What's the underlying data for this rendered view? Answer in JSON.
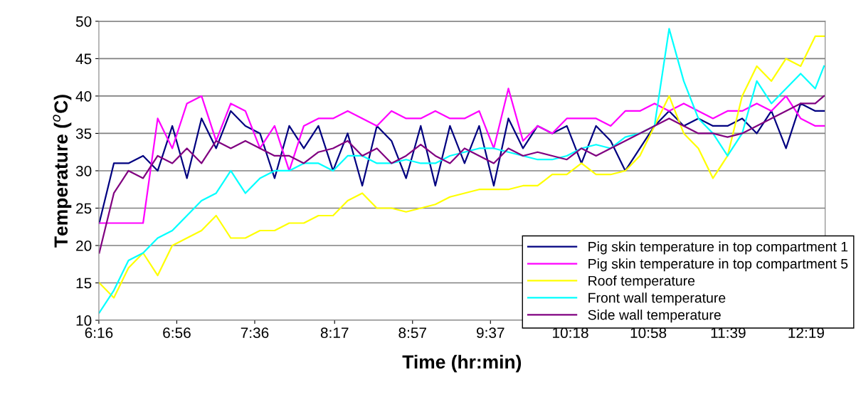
{
  "chart_data": {
    "type": "line",
    "xlabel": "Time (hr:min)",
    "ylabel": "Temperature ($^{o}$C)",
    "x": [
      6.27,
      6.395,
      6.52,
      6.645,
      6.77,
      6.895,
      7.02,
      7.145,
      7.27,
      7.395,
      7.52,
      7.645,
      7.77,
      7.895,
      8.02,
      8.145,
      8.27,
      8.395,
      8.52,
      8.645,
      8.77,
      8.895,
      9.02,
      9.145,
      9.27,
      9.395,
      9.52,
      9.645,
      9.77,
      9.895,
      10.02,
      10.145,
      10.27,
      10.395,
      10.52,
      10.645,
      10.77,
      10.895,
      11.02,
      11.145,
      11.27,
      11.395,
      11.52,
      11.645,
      11.77,
      11.895,
      12.02,
      12.145,
      12.27,
      12.395,
      12.47
    ],
    "series": [
      {
        "name": "Pig skin temperature in top compartment 1",
        "color": "#000080",
        "values": [
          23,
          31,
          31,
          32,
          30,
          36,
          29,
          37,
          33,
          38,
          36,
          35,
          29,
          36,
          33,
          36,
          30,
          35,
          28,
          36,
          34,
          29,
          36,
          28,
          36,
          31,
          36,
          28,
          37,
          33,
          36,
          35,
          36,
          31,
          36,
          34,
          30,
          33,
          36,
          38,
          36,
          37,
          36,
          36,
          37,
          35,
          38,
          33,
          39,
          38,
          38
        ]
      },
      {
        "name": "Pig skin temperature in top compartment 5",
        "color": "#ff00ff",
        "values": [
          23,
          23,
          23,
          23,
          37,
          33,
          39,
          40,
          34,
          39,
          38,
          33,
          36,
          30,
          36,
          37,
          37,
          38,
          37,
          36,
          38,
          37,
          37,
          38,
          37,
          37,
          38,
          33,
          41,
          34,
          36,
          35,
          37,
          37,
          37,
          36,
          38,
          38,
          39,
          38,
          39,
          38,
          37,
          38,
          38,
          39,
          38,
          40,
          37,
          36,
          36
        ]
      },
      {
        "name": "Roof temperature",
        "color": "#ffff00",
        "values": [
          15,
          13,
          17,
          19,
          16,
          20,
          21,
          22,
          24,
          21,
          21,
          22,
          22,
          23,
          23,
          24,
          24,
          26,
          27,
          25,
          25,
          24.5,
          25,
          25.5,
          26.5,
          27,
          27.5,
          27.5,
          27.5,
          28,
          28,
          29.5,
          29.5,
          31,
          29.5,
          29.5,
          30,
          32,
          36,
          40,
          35,
          33,
          29,
          32,
          40,
          44,
          42,
          45,
          44,
          48,
          48
        ]
      },
      {
        "name": "Front wall temperature",
        "color": "#00ffff",
        "values": [
          11,
          14,
          18,
          19,
          21,
          22,
          24,
          26,
          27,
          30,
          27,
          29,
          30,
          30,
          31,
          31,
          30,
          32,
          32,
          31,
          31,
          31.5,
          31,
          31,
          32,
          32.5,
          33,
          33,
          32.5,
          32,
          31.5,
          31.5,
          32,
          33,
          33.5,
          33,
          34.5,
          35,
          36,
          49,
          42,
          37,
          35,
          32,
          35,
          42,
          39,
          41,
          43,
          41,
          44
        ]
      },
      {
        "name": "Side wall temperature",
        "color": "#800080",
        "values": [
          19,
          27,
          30,
          29,
          32,
          31,
          33,
          31,
          34,
          33,
          34,
          33,
          32,
          32,
          31,
          32.5,
          33,
          34,
          32,
          33,
          31,
          32,
          33.5,
          32,
          31,
          33,
          32,
          31,
          33,
          32,
          32.5,
          32,
          31.5,
          33,
          32,
          33,
          34,
          35,
          36,
          37,
          36,
          35,
          35,
          34.5,
          35,
          36,
          37,
          38,
          39,
          39,
          40
        ]
      }
    ],
    "xlim": [
      6.2667,
      12.48
    ],
    "xticks": [
      {
        "value": 6.2667,
        "label": "6:16"
      },
      {
        "value": 6.9333,
        "label": "6:56"
      },
      {
        "value": 7.6,
        "label": "7:36"
      },
      {
        "value": 8.2833,
        "label": "8:17"
      },
      {
        "value": 8.95,
        "label": "8:57"
      },
      {
        "value": 9.6167,
        "label": "9:37"
      },
      {
        "value": 10.3,
        "label": "10:18"
      },
      {
        "value": 10.9667,
        "label": "10:58"
      },
      {
        "value": 11.65,
        "label": "11:39"
      },
      {
        "value": 12.3167,
        "label": "12:19"
      }
    ],
    "ylim": [
      10,
      50
    ],
    "yticks": [
      10,
      15,
      20,
      25,
      30,
      35,
      40,
      45,
      50
    ],
    "grid": "y",
    "legend": "lower right",
    "marker": "none",
    "line_style": "solid"
  }
}
